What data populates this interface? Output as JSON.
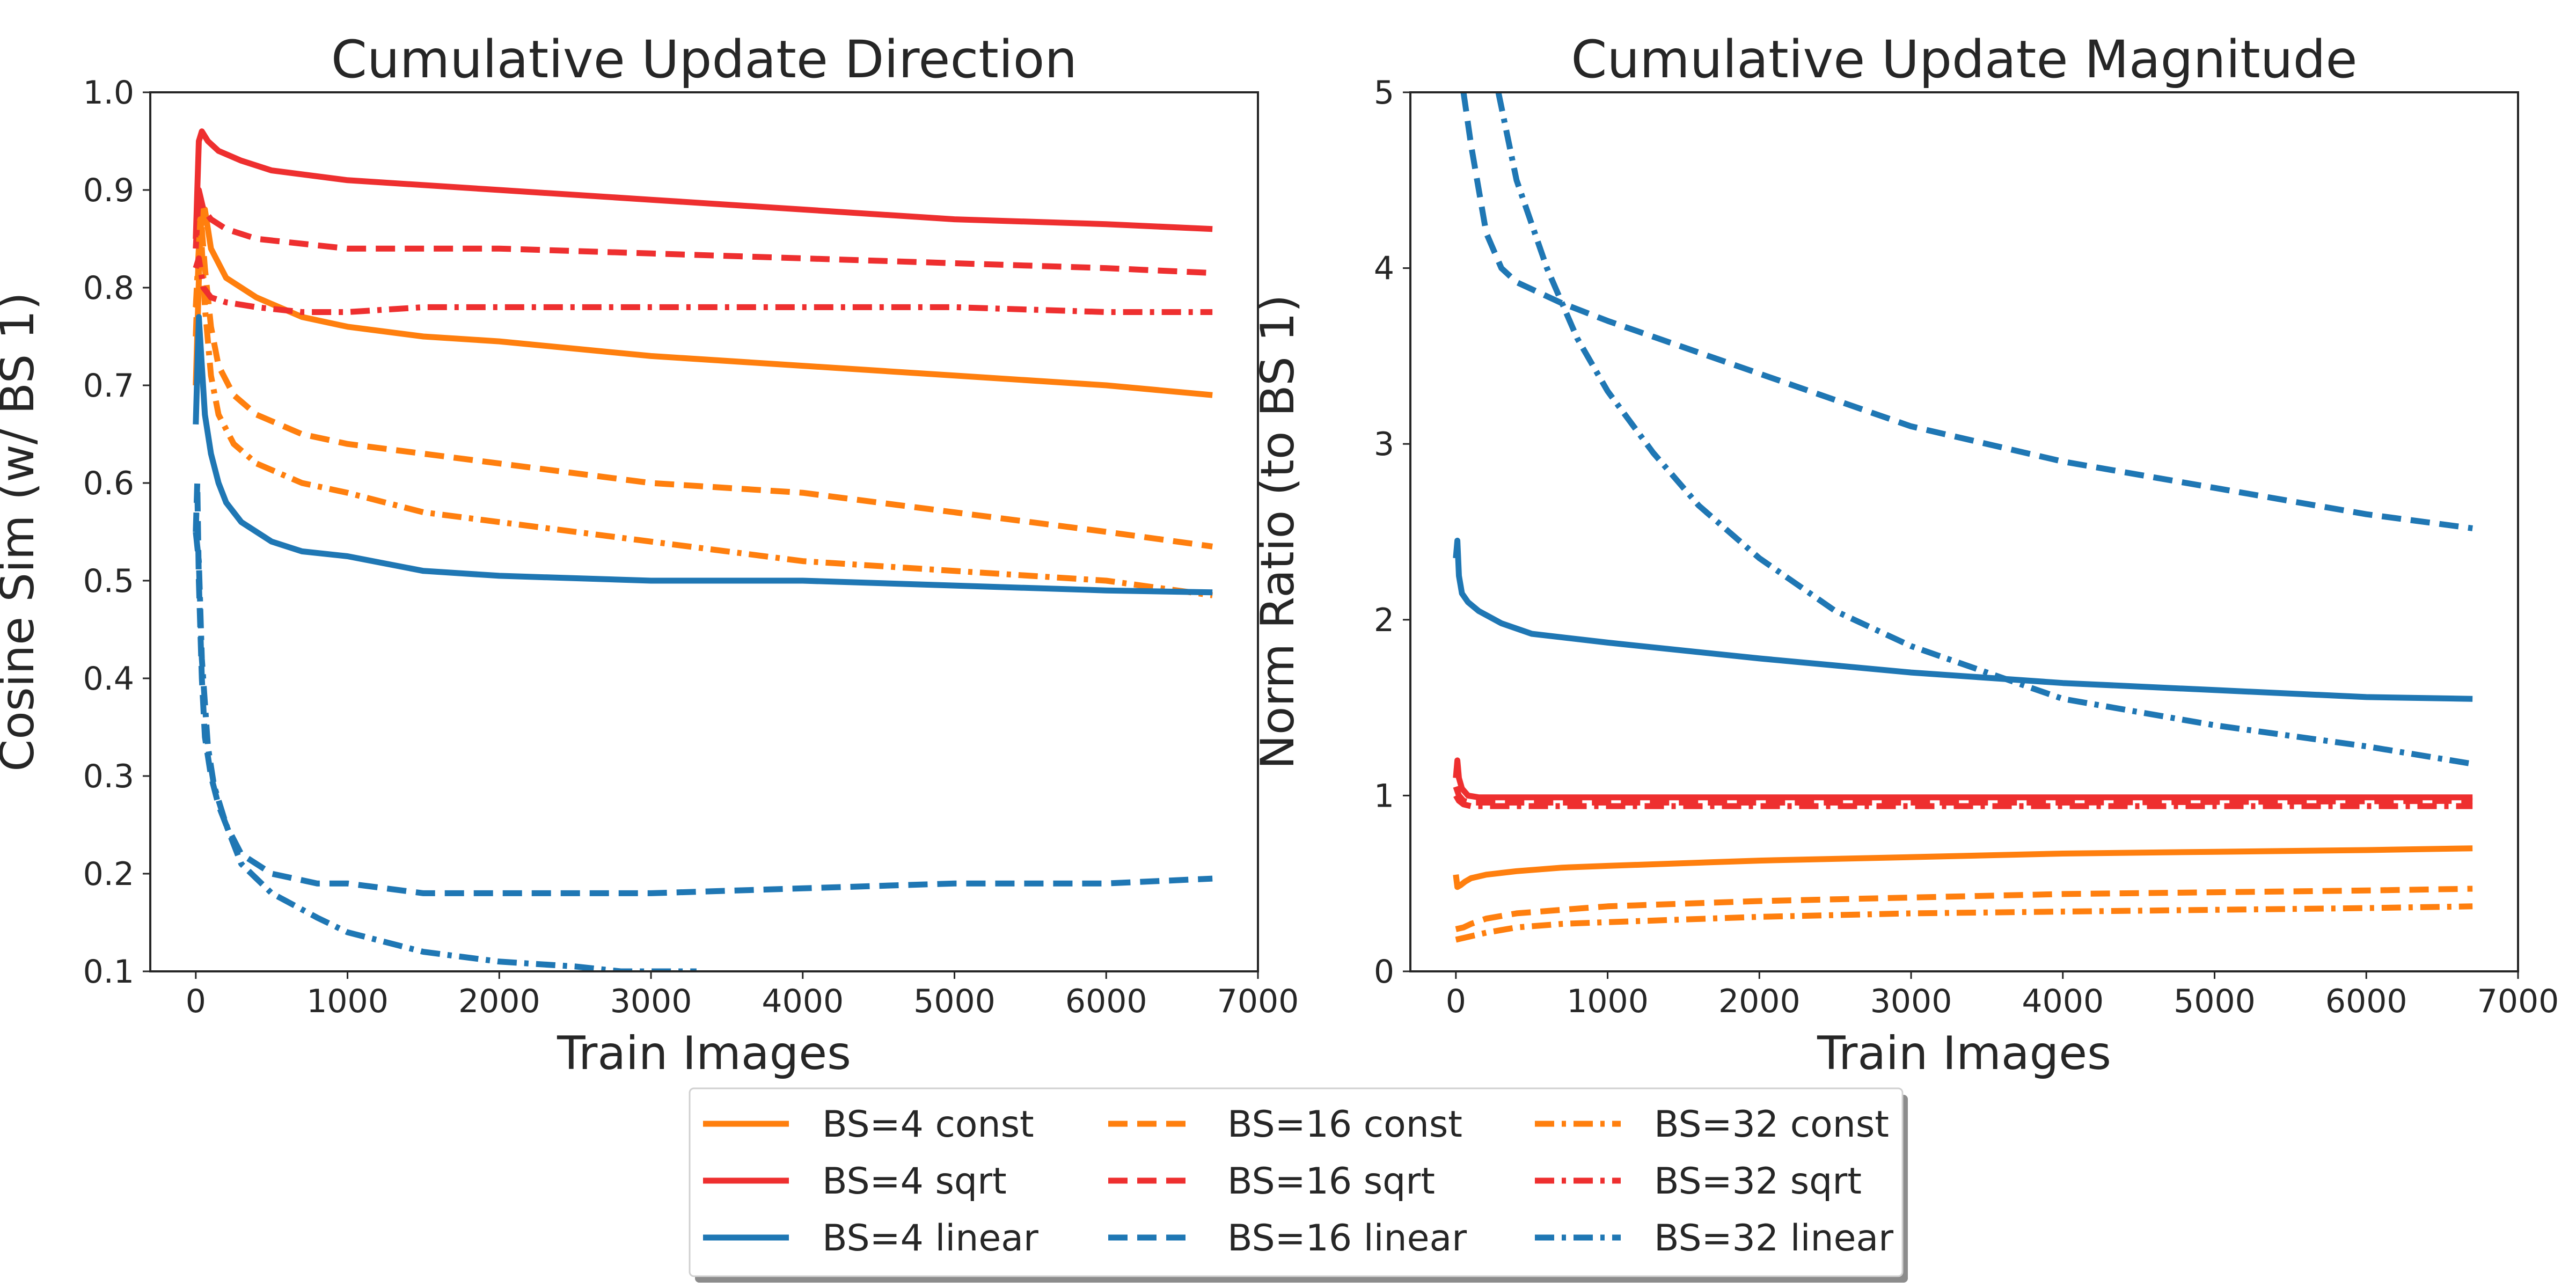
{
  "chart_data": [
    {
      "type": "line",
      "title": "Cumulative Update Direction",
      "xlabel": "Train Images",
      "ylabel": "Cosine Sim (w/ BS 1)",
      "xlim": [
        -300,
        7000
      ],
      "ylim": [
        0.1,
        1.0
      ],
      "xticks": [
        0,
        1000,
        2000,
        3000,
        4000,
        5000,
        6000,
        7000
      ],
      "xtick_labels": [
        "0",
        "1000",
        "2000",
        "3000",
        "4000",
        "5000",
        "6000",
        "7000"
      ],
      "yticks": [
        0.1,
        0.2,
        0.3,
        0.4,
        0.5,
        0.6,
        0.7,
        0.8,
        0.9,
        1.0
      ],
      "ytick_labels": [
        "0.1",
        "0.2",
        "0.3",
        "0.4",
        "0.5",
        "0.6",
        "0.7",
        "0.8",
        "0.9",
        "1.0"
      ],
      "grid": false,
      "series": [
        {
          "name": "BS=4 const",
          "color": "#ff7f0e",
          "dash": "solid",
          "x": [
            0,
            30,
            60,
            100,
            200,
            400,
            700,
            1000,
            1500,
            2000,
            3000,
            4000,
            5000,
            6000,
            6700
          ],
          "y": [
            0.7,
            0.86,
            0.88,
            0.84,
            0.81,
            0.79,
            0.77,
            0.76,
            0.75,
            0.745,
            0.73,
            0.72,
            0.71,
            0.7,
            0.69
          ]
        },
        {
          "name": "BS=4 sqrt",
          "color": "#ee2f2f",
          "dash": "solid",
          "x": [
            0,
            20,
            40,
            80,
            150,
            300,
            500,
            1000,
            2000,
            3000,
            4000,
            5000,
            6000,
            6700
          ],
          "y": [
            0.85,
            0.95,
            0.96,
            0.95,
            0.94,
            0.93,
            0.92,
            0.91,
            0.9,
            0.89,
            0.88,
            0.87,
            0.865,
            0.86
          ]
        },
        {
          "name": "BS=16 const",
          "color": "#ff7f0e",
          "dash": "dash",
          "x": [
            0,
            30,
            60,
            100,
            150,
            250,
            400,
            700,
            1000,
            1500,
            2000,
            3000,
            4000,
            5000,
            6000,
            6700
          ],
          "y": [
            0.75,
            0.88,
            0.82,
            0.76,
            0.72,
            0.69,
            0.67,
            0.65,
            0.64,
            0.63,
            0.62,
            0.6,
            0.59,
            0.57,
            0.55,
            0.535
          ]
        },
        {
          "name": "BS=16 sqrt",
          "color": "#ee2f2f",
          "dash": "dash",
          "x": [
            0,
            20,
            50,
            100,
            200,
            400,
            700,
            1000,
            2000,
            3000,
            4000,
            5000,
            6000,
            6700
          ],
          "y": [
            0.84,
            0.9,
            0.88,
            0.87,
            0.86,
            0.85,
            0.845,
            0.84,
            0.84,
            0.835,
            0.83,
            0.825,
            0.82,
            0.815
          ]
        },
        {
          "name": "BS=16 linear",
          "color": "#1f77b4",
          "dash": "dash",
          "x": [
            0,
            10,
            20,
            40,
            60,
            100,
            150,
            200,
            300,
            500,
            800,
            1000,
            1500,
            2000,
            3000,
            4000,
            5000,
            6000,
            6700
          ],
          "y": [
            0.55,
            0.6,
            0.5,
            0.4,
            0.34,
            0.3,
            0.27,
            0.25,
            0.22,
            0.2,
            0.19,
            0.19,
            0.18,
            0.18,
            0.18,
            0.185,
            0.19,
            0.19,
            0.195
          ]
        },
        {
          "name": "BS=32 const",
          "color": "#ff7f0e",
          "dash": "dashdot",
          "x": [
            0,
            30,
            60,
            100,
            150,
            250,
            400,
            700,
            1000,
            1500,
            2000,
            3000,
            4000,
            5000,
            6000,
            6700
          ],
          "y": [
            0.78,
            0.87,
            0.78,
            0.71,
            0.67,
            0.64,
            0.62,
            0.6,
            0.59,
            0.57,
            0.56,
            0.54,
            0.52,
            0.51,
            0.5,
            0.485
          ]
        },
        {
          "name": "BS=32 sqrt",
          "color": "#ee2f2f",
          "dash": "dashdot",
          "x": [
            0,
            20,
            50,
            100,
            200,
            400,
            700,
            1000,
            1500,
            2000,
            3000,
            4000,
            5000,
            6000,
            6700
          ],
          "y": [
            0.82,
            0.83,
            0.8,
            0.79,
            0.785,
            0.78,
            0.775,
            0.775,
            0.78,
            0.78,
            0.78,
            0.78,
            0.78,
            0.775,
            0.775
          ]
        },
        {
          "name": "BS=4 linear",
          "color": "#1f77b4",
          "dash": "solid",
          "x": [
            0,
            20,
            40,
            60,
            100,
            150,
            200,
            300,
            500,
            700,
            1000,
            1500,
            2000,
            3000,
            4000,
            5000,
            6000,
            6700
          ],
          "y": [
            0.66,
            0.77,
            0.72,
            0.67,
            0.63,
            0.6,
            0.58,
            0.56,
            0.54,
            0.53,
            0.525,
            0.51,
            0.505,
            0.5,
            0.5,
            0.495,
            0.49,
            0.488
          ]
        },
        {
          "name": "BS=32 linear",
          "color": "#1f77b4",
          "dash": "dashdot",
          "x": [
            0,
            20,
            40,
            80,
            120,
            200,
            300,
            500,
            800,
            1000,
            1500,
            2000,
            2500,
            2800,
            3300
          ],
          "y": [
            0.55,
            0.52,
            0.42,
            0.33,
            0.29,
            0.25,
            0.21,
            0.18,
            0.155,
            0.14,
            0.12,
            0.11,
            0.105,
            0.1,
            0.1
          ]
        }
      ]
    },
    {
      "type": "line",
      "title": "Cumulative Update Magnitude",
      "xlabel": "Train Images",
      "ylabel": "Norm Ratio (to BS 1)",
      "xlim": [
        -300,
        7000
      ],
      "ylim": [
        0,
        5
      ],
      "xticks": [
        0,
        1000,
        2000,
        3000,
        4000,
        5000,
        6000,
        7000
      ],
      "xtick_labels": [
        "0",
        "1000",
        "2000",
        "3000",
        "4000",
        "5000",
        "6000",
        "7000"
      ],
      "yticks": [
        0,
        1,
        2,
        3,
        4,
        5
      ],
      "ytick_labels": [
        "0",
        "1",
        "2",
        "3",
        "4",
        "5"
      ],
      "grid": false,
      "series": [
        {
          "name": "BS=16 linear",
          "color": "#1f77b4",
          "dash": "dash",
          "x": [
            50,
            100,
            200,
            300,
            400,
            500,
            700,
            1000,
            1500,
            2000,
            3000,
            4000,
            5000,
            6000,
            6700
          ],
          "y": [
            5.0,
            4.7,
            4.2,
            4.0,
            3.92,
            3.88,
            3.8,
            3.7,
            3.55,
            3.4,
            3.1,
            2.9,
            2.75,
            2.6,
            2.52
          ]
        },
        {
          "name": "BS=32 linear",
          "color": "#1f77b4",
          "dash": "dashdot",
          "x": [
            280,
            400,
            600,
            800,
            1000,
            1300,
            1600,
            2000,
            2500,
            3000,
            3500,
            4000,
            5000,
            6000,
            6700
          ],
          "y": [
            5.0,
            4.5,
            4.0,
            3.6,
            3.3,
            2.95,
            2.65,
            2.35,
            2.05,
            1.85,
            1.7,
            1.55,
            1.4,
            1.28,
            1.18
          ]
        },
        {
          "name": "BS=4 linear",
          "color": "#1f77b4",
          "dash": "solid",
          "x": [
            0,
            10,
            20,
            40,
            80,
            150,
            300,
            500,
            1000,
            2000,
            3000,
            4000,
            5000,
            6000,
            6700
          ],
          "y": [
            2.35,
            2.45,
            2.25,
            2.15,
            2.1,
            2.05,
            1.98,
            1.92,
            1.87,
            1.78,
            1.7,
            1.64,
            1.6,
            1.56,
            1.55
          ]
        },
        {
          "name": "BS=4 sqrt",
          "color": "#ee2f2f",
          "dash": "solid",
          "x": [
            0,
            10,
            20,
            40,
            80,
            150,
            300,
            1000,
            2000,
            4000,
            6700
          ],
          "y": [
            1.1,
            1.2,
            1.1,
            1.04,
            1.0,
            0.99,
            0.99,
            0.99,
            0.99,
            0.99,
            0.99
          ]
        },
        {
          "name": "BS=16 sqrt",
          "color": "#ee2f2f",
          "dash": "dash",
          "x": [
            0,
            20,
            50,
            100,
            300,
            1000,
            2000,
            4000,
            6700
          ],
          "y": [
            1.05,
            1.0,
            0.97,
            0.96,
            0.96,
            0.96,
            0.96,
            0.96,
            0.97
          ]
        },
        {
          "name": "BS=32 sqrt",
          "color": "#ee2f2f",
          "dash": "dashdot",
          "x": [
            0,
            20,
            50,
            100,
            300,
            1000,
            2000,
            4000,
            6700
          ],
          "y": [
            1.0,
            0.97,
            0.95,
            0.94,
            0.94,
            0.94,
            0.94,
            0.94,
            0.94
          ]
        },
        {
          "name": "BS=4 const",
          "color": "#ff7f0e",
          "dash": "solid",
          "x": [
            0,
            10,
            30,
            60,
            100,
            200,
            400,
            700,
            1000,
            2000,
            3000,
            4000,
            5000,
            6000,
            6700
          ],
          "y": [
            0.55,
            0.48,
            0.49,
            0.51,
            0.53,
            0.55,
            0.57,
            0.59,
            0.6,
            0.63,
            0.65,
            0.67,
            0.68,
            0.69,
            0.7
          ]
        },
        {
          "name": "BS=16 const",
          "color": "#ff7f0e",
          "dash": "dash",
          "x": [
            0,
            50,
            100,
            200,
            400,
            700,
            1000,
            2000,
            3000,
            4000,
            5000,
            6000,
            6700
          ],
          "y": [
            0.24,
            0.25,
            0.27,
            0.3,
            0.33,
            0.35,
            0.37,
            0.4,
            0.42,
            0.44,
            0.45,
            0.46,
            0.47
          ]
        },
        {
          "name": "BS=32 const",
          "color": "#ff7f0e",
          "dash": "dashdot",
          "x": [
            0,
            50,
            100,
            200,
            400,
            700,
            1000,
            2000,
            3000,
            4000,
            5000,
            6000,
            6700
          ],
          "y": [
            0.18,
            0.19,
            0.2,
            0.22,
            0.25,
            0.27,
            0.28,
            0.31,
            0.33,
            0.34,
            0.35,
            0.36,
            0.37
          ]
        }
      ]
    }
  ],
  "legend": {
    "placement": "bottom-center",
    "columns": [
      [
        {
          "label": "BS=4 const",
          "color": "#ff7f0e",
          "dash": "solid"
        },
        {
          "label": "BS=4 sqrt",
          "color": "#ee2f2f",
          "dash": "solid"
        },
        {
          "label": "BS=4 linear",
          "color": "#1f77b4",
          "dash": "solid"
        }
      ],
      [
        {
          "label": "BS=16 const",
          "color": "#ff7f0e",
          "dash": "dash"
        },
        {
          "label": "BS=16 sqrt",
          "color": "#ee2f2f",
          "dash": "dash"
        },
        {
          "label": "BS=16 linear",
          "color": "#1f77b4",
          "dash": "dash"
        }
      ],
      [
        {
          "label": "BS=32 const",
          "color": "#ff7f0e",
          "dash": "dashdot"
        },
        {
          "label": "BS=32 sqrt",
          "color": "#ee2f2f",
          "dash": "dashdot"
        },
        {
          "label": "BS=32 linear",
          "color": "#1f77b4",
          "dash": "dashdot"
        }
      ]
    ]
  }
}
